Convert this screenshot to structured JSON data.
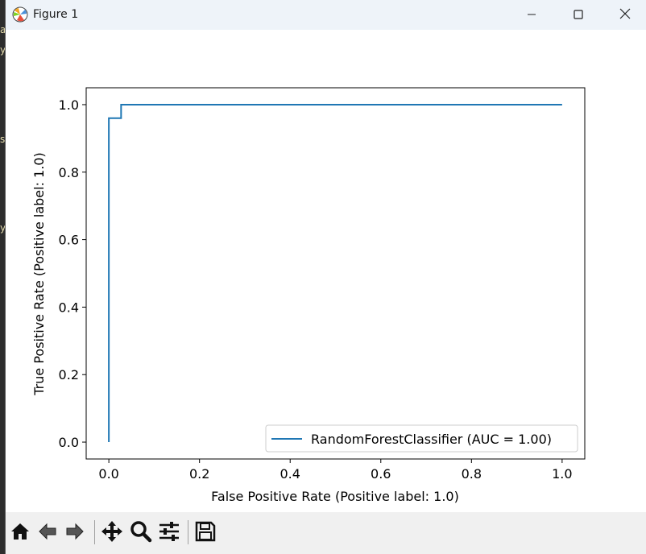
{
  "window": {
    "title": "Figure 1",
    "icons": {
      "app": "matplotlib-icon",
      "minimize": "minimize-icon",
      "maximize": "maximize-icon",
      "close": "close-icon"
    }
  },
  "background_glyphs": [
    "a",
    "y",
    "s",
    "y"
  ],
  "toolbar": {
    "buttons": [
      {
        "name": "home",
        "icon": "home-icon"
      },
      {
        "name": "back",
        "icon": "back-arrow-icon"
      },
      {
        "name": "forward",
        "icon": "forward-arrow-icon"
      },
      {
        "name": "pan",
        "icon": "move-icon"
      },
      {
        "name": "zoom",
        "icon": "magnifier-icon"
      },
      {
        "name": "configure-subplots",
        "icon": "sliders-icon"
      },
      {
        "name": "save",
        "icon": "floppy-disk-icon"
      }
    ]
  },
  "chart_data": {
    "type": "line",
    "title": "",
    "xlabel": "False Positive Rate (Positive label: 1.0)",
    "ylabel": "True Positive Rate (Positive label: 1.0)",
    "xlim": [
      -0.05,
      1.05
    ],
    "ylim": [
      -0.05,
      1.05
    ],
    "xticks": [
      0.0,
      0.2,
      0.4,
      0.6,
      0.8,
      1.0
    ],
    "xtick_labels": [
      "0.0",
      "0.2",
      "0.4",
      "0.6",
      "0.8",
      "1.0"
    ],
    "yticks": [
      0.0,
      0.2,
      0.4,
      0.6,
      0.8,
      1.0
    ],
    "ytick_labels": [
      "0.0",
      "0.2",
      "0.4",
      "0.6",
      "0.8",
      "1.0"
    ],
    "grid": false,
    "legend_position": "lower right",
    "series": [
      {
        "name": "RandomForestClassifier (AUC = 1.00)",
        "color": "#1f77b4",
        "x": [
          0.0,
          0.0,
          0.0,
          0.027,
          0.027,
          1.0
        ],
        "y": [
          0.0,
          0.96,
          0.96,
          0.96,
          1.0,
          1.0
        ]
      }
    ]
  }
}
